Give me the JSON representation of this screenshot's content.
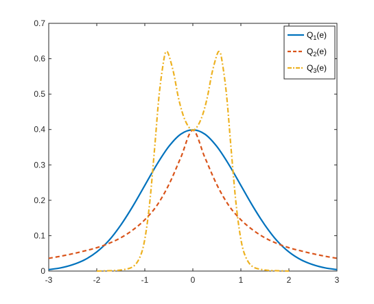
{
  "chart_data": {
    "type": "line",
    "title": "",
    "xlabel": "",
    "ylabel": "",
    "xlim": [
      -3,
      3
    ],
    "ylim": [
      0,
      0.7
    ],
    "grid": false,
    "legend_placement": "top-right",
    "x_ticks": [
      -3,
      -2,
      -1,
      0,
      1,
      2,
      3
    ],
    "x_tick_labels": [
      "-3",
      "-2",
      "-1",
      "0",
      "1",
      "2",
      "3"
    ],
    "y_ticks": [
      0,
      0.1,
      0.2,
      0.3,
      0.4,
      0.5,
      0.6,
      0.7
    ],
    "y_tick_labels": [
      "0",
      "0.1",
      "0.2",
      "0.3",
      "0.4",
      "0.5",
      "0.6",
      "0.7"
    ],
    "series": [
      {
        "name": "Q1(e)",
        "legend_base": "Q",
        "legend_sub": "1",
        "legend_tail": "(e)",
        "color": "#0072BD",
        "style": "solid",
        "x": [
          -3,
          -2.75,
          -2.5,
          -2.25,
          -2,
          -1.75,
          -1.5,
          -1.25,
          -1,
          -0.75,
          -0.5,
          -0.25,
          0,
          0.25,
          0.5,
          0.75,
          1,
          1.25,
          1.5,
          1.75,
          2,
          2.25,
          2.5,
          2.75,
          3
        ],
        "values": [
          0.004,
          0.009,
          0.018,
          0.032,
          0.054,
          0.086,
          0.13,
          0.183,
          0.242,
          0.301,
          0.352,
          0.387,
          0.399,
          0.387,
          0.352,
          0.301,
          0.242,
          0.183,
          0.13,
          0.086,
          0.054,
          0.032,
          0.018,
          0.009,
          0.004
        ]
      },
      {
        "name": "Q2(e)",
        "legend_base": "Q",
        "legend_sub": "2",
        "legend_tail": "(e)",
        "color": "#D95319",
        "style": "dashed",
        "x": [
          -3,
          -2.75,
          -2.5,
          -2.25,
          -2,
          -1.75,
          -1.5,
          -1.25,
          -1,
          -0.75,
          -0.5,
          -0.25,
          0,
          0.25,
          0.5,
          0.75,
          1,
          1.25,
          1.5,
          1.75,
          2,
          2.25,
          2.5,
          2.75,
          3
        ],
        "values": [
          0.036,
          0.042,
          0.049,
          0.057,
          0.066,
          0.078,
          0.094,
          0.116,
          0.145,
          0.185,
          0.244,
          0.321,
          0.398,
          0.321,
          0.244,
          0.185,
          0.145,
          0.116,
          0.094,
          0.078,
          0.066,
          0.057,
          0.049,
          0.042,
          0.036
        ]
      },
      {
        "name": "Q3(e)",
        "legend_base": "Q",
        "legend_sub": "3",
        "legend_tail": "(e)",
        "color": "#EDB120",
        "style": "dashdot",
        "x": [
          -2,
          -1.75,
          -1.5,
          -1.25,
          -1.1,
          -1,
          -0.9,
          -0.8,
          -0.7,
          -0.6,
          -0.55,
          -0.5,
          -0.4,
          -0.3,
          -0.2,
          -0.1,
          0,
          0.1,
          0.2,
          0.3,
          0.4,
          0.5,
          0.55,
          0.6,
          0.7,
          0.8,
          0.9,
          1,
          1.1,
          1.25,
          1.5,
          1.75,
          2
        ],
        "values": [
          0.0,
          0.001,
          0.003,
          0.012,
          0.04,
          0.09,
          0.19,
          0.34,
          0.5,
          0.6,
          0.62,
          0.61,
          0.56,
          0.49,
          0.44,
          0.41,
          0.398,
          0.41,
          0.44,
          0.49,
          0.56,
          0.61,
          0.62,
          0.6,
          0.5,
          0.34,
          0.19,
          0.09,
          0.04,
          0.012,
          0.003,
          0.001,
          0.0
        ]
      }
    ]
  }
}
